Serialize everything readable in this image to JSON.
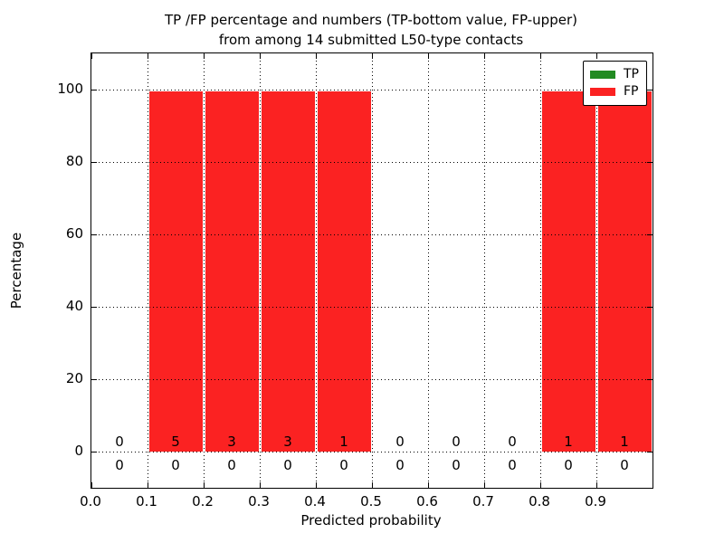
{
  "title": {
    "line1": "TP /FP percentage and numbers (TP-bottom value, FP-upper)",
    "line2": "from among 14 submitted L50-type contacts"
  },
  "axes": {
    "xlabel": "Predicted probability",
    "ylabel": "Percentage",
    "x_ticks": [
      "0.0",
      "0.1",
      "0.2",
      "0.3",
      "0.4",
      "0.5",
      "0.6",
      "0.7",
      "0.8",
      "0.9"
    ],
    "y_ticks": [
      "0",
      "20",
      "40",
      "60",
      "80",
      "100"
    ]
  },
  "legend": {
    "items": [
      {
        "label": "TP",
        "color": "#228b22"
      },
      {
        "label": "FP",
        "color": "#fb2222"
      }
    ]
  },
  "chart_data": {
    "type": "bar",
    "stacked": true,
    "title": "TP /FP percentage and numbers (TP-bottom value, FP-upper) from among 14 submitted L50-type contacts",
    "xlabel": "Predicted probability",
    "ylabel": "Percentage",
    "xlim": [
      0.0,
      1.0
    ],
    "ylim": [
      -10,
      110
    ],
    "grid": "dotted",
    "legend_position": "upper right",
    "bin_edges": [
      0.0,
      0.1,
      0.2,
      0.3,
      0.4,
      0.5,
      0.6,
      0.7,
      0.8,
      0.9,
      1.0
    ],
    "categories": [
      "0.0-0.1",
      "0.1-0.2",
      "0.2-0.3",
      "0.3-0.4",
      "0.4-0.5",
      "0.5-0.6",
      "0.6-0.7",
      "0.7-0.8",
      "0.8-0.9",
      "0.9-1.0"
    ],
    "y_grid": [
      0,
      20,
      40,
      60,
      80,
      100
    ],
    "series": [
      {
        "name": "TP",
        "color": "#228b22",
        "percent": [
          0,
          0,
          0,
          0,
          0,
          0,
          0,
          0,
          0,
          0
        ],
        "counts": [
          0,
          0,
          0,
          0,
          0,
          0,
          0,
          0,
          0,
          0
        ]
      },
      {
        "name": "FP",
        "color": "#fb2222",
        "percent": [
          0,
          100,
          100,
          100,
          100,
          0,
          0,
          0,
          100,
          100
        ],
        "counts": [
          0,
          5,
          3,
          3,
          1,
          0,
          0,
          0,
          1,
          1
        ]
      }
    ],
    "total_submitted": 14
  }
}
